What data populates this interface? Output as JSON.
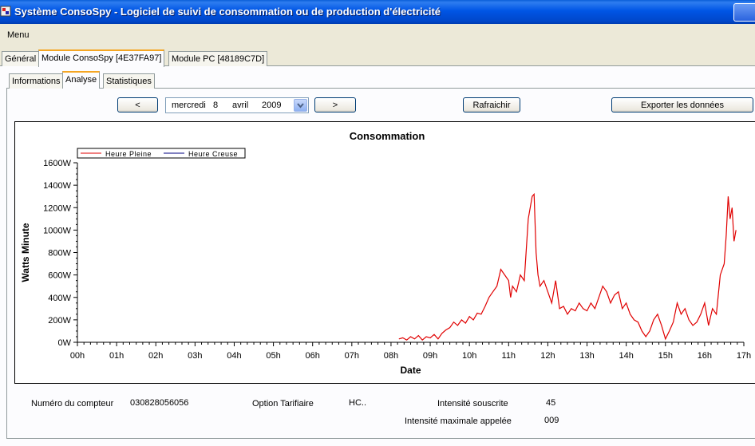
{
  "window": {
    "title": "Système ConsoSpy - Logiciel de suivi de consommation ou de production d'électricité"
  },
  "menu": {
    "label": "Menu"
  },
  "tabs": [
    {
      "label": "Général"
    },
    {
      "label": "Module  ConsoSpy [4E37FA97]"
    },
    {
      "label": "Module  PC [48189C7D]"
    }
  ],
  "subtabs": [
    {
      "label": "Informations"
    },
    {
      "label": "Analyse"
    },
    {
      "label": "Statistiques"
    }
  ],
  "toolbar": {
    "prev_label": "<",
    "next_label": ">",
    "refresh_label": "Rafraichir",
    "export_label": "Exporter les données",
    "date": {
      "day_name": "mercredi",
      "day": "8",
      "month": "avril",
      "year": "2009"
    }
  },
  "chart_data": {
    "type": "line",
    "title": "Consommation",
    "xlabel": "Date",
    "ylabel": "Watts Minute",
    "legend": [
      "Heure Pleine",
      "Heure Creuse"
    ],
    "legend_position": "top-left",
    "series_colors": [
      "#e00000",
      "#000080"
    ],
    "x_ticks": [
      "00h",
      "01h",
      "02h",
      "03h",
      "04h",
      "05h",
      "06h",
      "07h",
      "08h",
      "09h",
      "10h",
      "11h",
      "12h",
      "13h",
      "14h",
      "15h",
      "16h",
      "17h"
    ],
    "y_ticks": [
      "0W",
      "200W",
      "400W",
      "600W",
      "800W",
      "1000W",
      "1200W",
      "1400W",
      "1600W"
    ],
    "xlim": [
      0,
      17
    ],
    "ylim": [
      0,
      1600
    ],
    "grid": false,
    "series": [
      {
        "name": "Heure Pleine",
        "x": [
          8.2,
          8.3,
          8.4,
          8.5,
          8.6,
          8.7,
          8.8,
          8.9,
          9.0,
          9.1,
          9.2,
          9.3,
          9.4,
          9.5,
          9.6,
          9.7,
          9.8,
          9.9,
          10.0,
          10.1,
          10.2,
          10.3,
          10.4,
          10.5,
          10.6,
          10.7,
          10.8,
          10.9,
          11.0,
          11.05,
          11.1,
          11.2,
          11.3,
          11.4,
          11.5,
          11.6,
          11.65,
          11.7,
          11.75,
          11.8,
          11.9,
          12.0,
          12.1,
          12.2,
          12.3,
          12.4,
          12.5,
          12.6,
          12.7,
          12.8,
          12.9,
          13.0,
          13.1,
          13.2,
          13.3,
          13.4,
          13.5,
          13.6,
          13.7,
          13.8,
          13.9,
          14.0,
          14.1,
          14.2,
          14.3,
          14.4,
          14.5,
          14.6,
          14.7,
          14.8,
          14.9,
          15.0,
          15.1,
          15.2,
          15.3,
          15.4,
          15.5,
          15.6,
          15.7,
          15.8,
          15.9,
          16.0,
          16.1,
          16.2,
          16.3,
          16.4,
          16.5,
          16.55,
          16.6,
          16.65,
          16.7,
          16.75,
          16.8
        ],
        "y": [
          30,
          40,
          20,
          50,
          30,
          60,
          20,
          50,
          40,
          70,
          30,
          80,
          110,
          130,
          180,
          150,
          200,
          170,
          230,
          200,
          260,
          250,
          320,
          400,
          450,
          500,
          650,
          600,
          550,
          400,
          500,
          450,
          600,
          550,
          1100,
          1300,
          1320,
          800,
          600,
          500,
          550,
          450,
          350,
          550,
          300,
          320,
          250,
          300,
          280,
          350,
          300,
          280,
          350,
          300,
          400,
          500,
          450,
          350,
          420,
          450,
          300,
          350,
          250,
          200,
          180,
          100,
          50,
          100,
          200,
          250,
          150,
          30,
          100,
          180,
          350,
          250,
          300,
          200,
          150,
          180,
          250,
          350,
          150,
          300,
          250,
          600,
          700,
          950,
          1300,
          1100,
          1200,
          900,
          1000
        ]
      },
      {
        "name": "Heure Creuse",
        "x": [],
        "y": []
      }
    ]
  },
  "info": {
    "compteur_label": "Numéro du compteur",
    "compteur_value": "030828056056",
    "option_label": "Option Tarifiaire",
    "option_value": "HC..",
    "intensite_label": "Intensité souscrite",
    "intensite_value": "45",
    "intensite_max_label": "Intensité maximale appelée",
    "intensite_max_value": "009"
  }
}
